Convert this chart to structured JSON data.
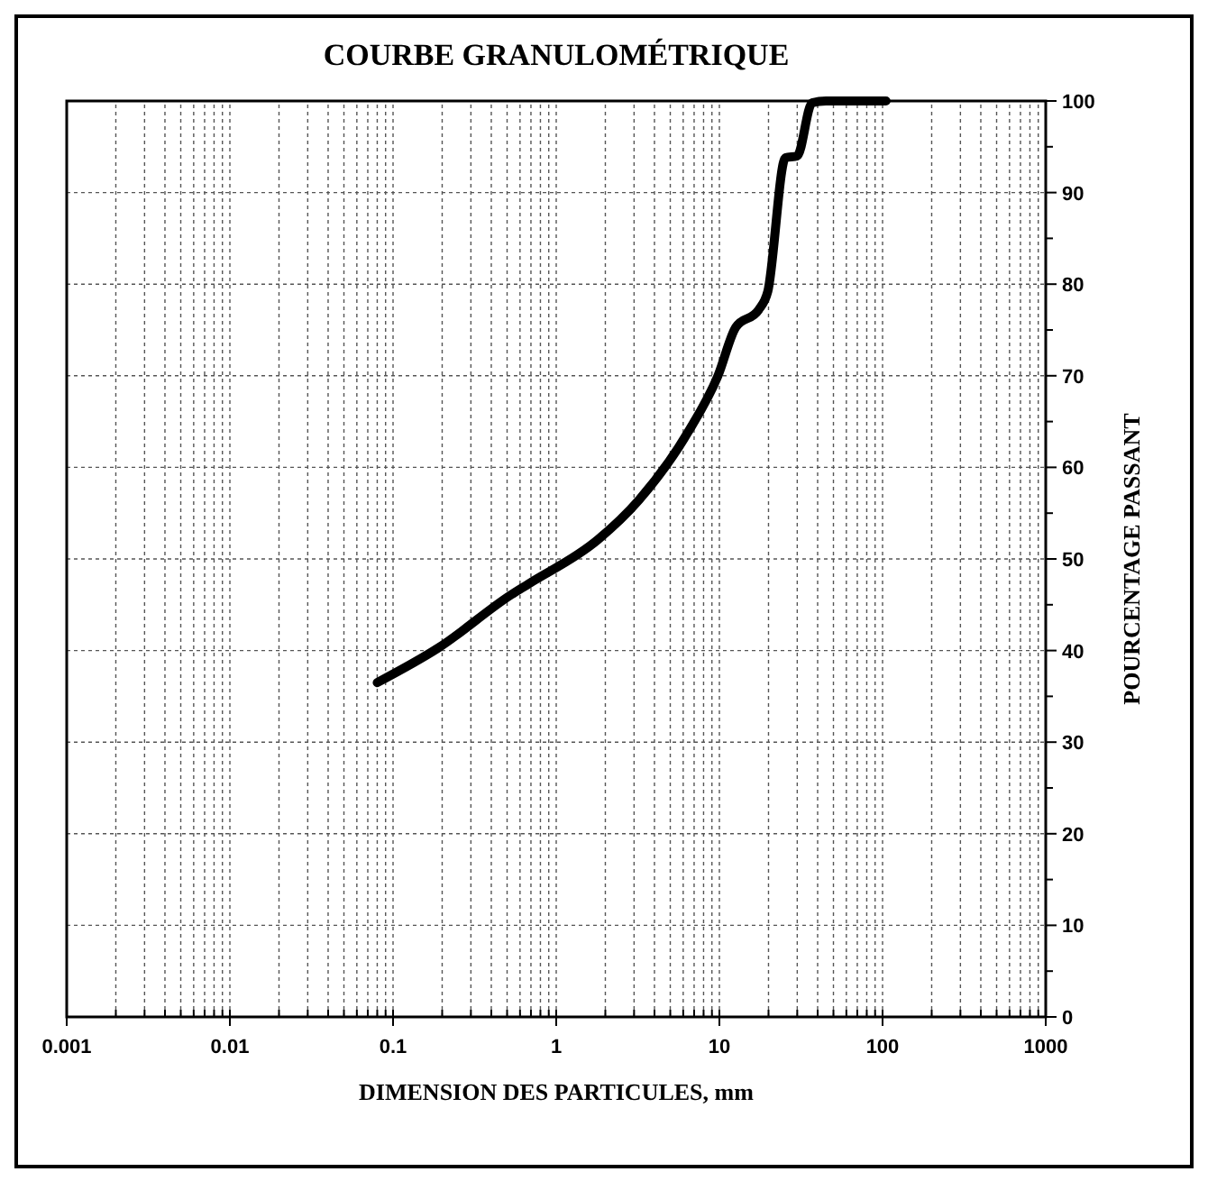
{
  "chart_data": {
    "type": "line",
    "title": "COURBE GRANULOMÉTRIQUE",
    "xlabel": "DIMENSION DES PARTICULES, mm",
    "ylabel": "POURCENTAGE PASSANT",
    "log": "x",
    "grid": true,
    "marker": "none",
    "line_style": "solid",
    "xlim": [
      0.001,
      1000
    ],
    "xticks": [
      0.001,
      0.01,
      0.1,
      1,
      10,
      100,
      1000
    ],
    "ylim": [
      0,
      100
    ],
    "yticks": [
      0,
      {
        "value": 5,
        "label": null
      },
      10,
      {
        "value": 15,
        "label": null
      },
      20,
      {
        "value": 25,
        "label": null
      },
      30,
      {
        "value": 35,
        "label": null
      },
      40,
      {
        "value": 45,
        "label": null
      },
      50,
      {
        "value": 55,
        "label": null
      },
      60,
      {
        "value": 65,
        "label": null
      },
      70,
      {
        "value": 75,
        "label": null
      },
      80,
      {
        "value": 85,
        "label": null
      },
      90,
      {
        "value": 95,
        "label": null
      },
      100
    ],
    "series": [
      {
        "color": "#000000",
        "x": [
          0.08,
          0.19,
          0.53,
          0.68,
          1.8,
          3.2,
          6.4,
          9.8,
          12.6,
          17.4,
          19.8,
          25.4,
          30,
          37,
          45,
          105
        ],
        "values": [
          36.5,
          40.3,
          46.1,
          47.3,
          52.1,
          56.4,
          63.8,
          70,
          75.3,
          77.2,
          79.2,
          93.8,
          94,
          99.8,
          100,
          100
        ]
      }
    ]
  }
}
